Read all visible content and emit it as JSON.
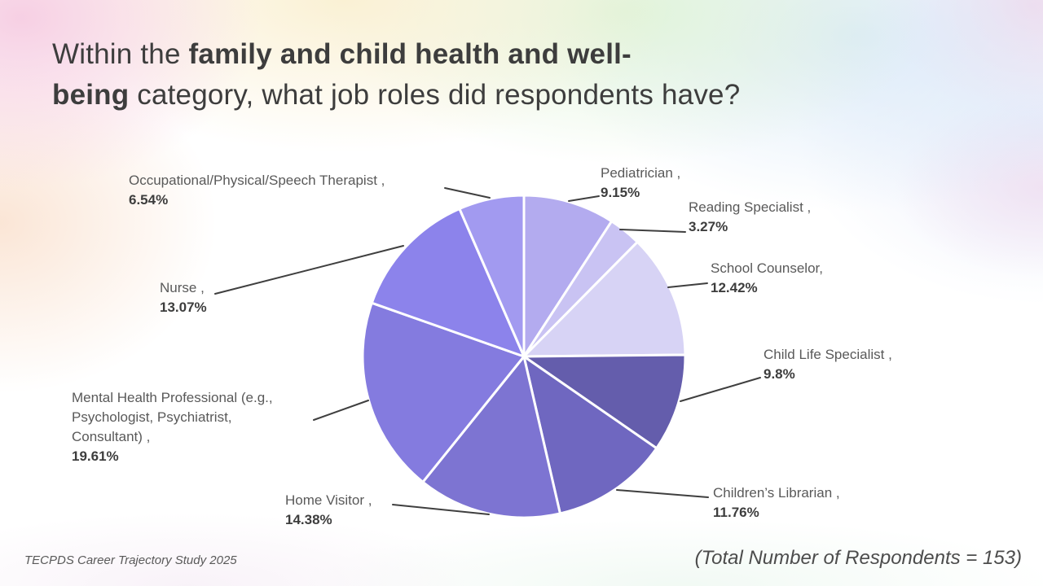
{
  "title": {
    "line1_regular": "Within the ",
    "line1_bold": "family and child health and well-",
    "line2_bold": "being",
    "line2_regular": " category, what job roles did respondents have?",
    "full_text": "Within the family and child health and well-being category, what job roles did respondents have?"
  },
  "chart_data": {
    "type": "pie",
    "title": "Within the family and child health and well-being category, what job roles did respondents have?",
    "total_respondents": 153,
    "start_angle_deg": 0,
    "direction": "clockwise",
    "slices": [
      {
        "label": "Pediatrician ,",
        "pct_label": "9.15%",
        "value": 9.15,
        "color": "#B3ABEF"
      },
      {
        "label": "Reading Specialist ,",
        "pct_label": "3.27%",
        "value": 3.27,
        "color": "#C9C3F3"
      },
      {
        "label": "School Counselor,",
        "pct_label": "12.42%",
        "value": 12.42,
        "color": "#D7D3F5"
      },
      {
        "label": "Child Life Specialist ,",
        "pct_label": "9.8%",
        "value": 9.8,
        "color": "#645DAC"
      },
      {
        "label": "Children’s Librarian ,",
        "pct_label": "11.76%",
        "value": 11.76,
        "color": "#6F67C0"
      },
      {
        "label": "Home Visitor ,",
        "pct_label": "14.38%",
        "value": 14.38,
        "color": "#7D74D2"
      },
      {
        "label": "Mental Health Professional (e.g.,\nPsychologist, Psychiatrist,\nConsultant) ,",
        "pct_label": "19.61%",
        "value": 19.61,
        "color": "#847BDF"
      },
      {
        "label": "Nurse ,",
        "pct_label": "13.07%",
        "value": 13.07,
        "color": "#8C83EB"
      },
      {
        "label": "Occupational/Physical/Speech Therapist ,",
        "pct_label": "6.54%",
        "value": 6.54,
        "color": "#A29AF0"
      }
    ]
  },
  "footer": {
    "source": "TECPDS Career Trajectory Study 2025",
    "total_note": "(Total Number of Respondents = 153)"
  }
}
